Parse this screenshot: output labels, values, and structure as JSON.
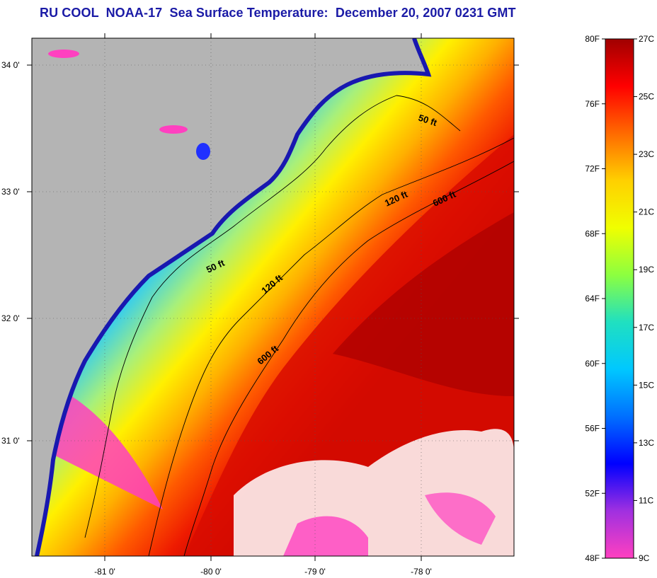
{
  "title": "RU COOL  NOAA-17  Sea Surface Temperature:  December 20, 2007 0231 GMT",
  "map": {
    "lat_labels": [
      "34 0'",
      "33 0'",
      "32 0'",
      "31 0'"
    ],
    "lon_labels": [
      "-81 0'",
      "-80 0'",
      "-79 0'",
      "-78 0'"
    ],
    "contour_labels": [
      "50 ft",
      "120 ft",
      "600 ft",
      "50 ft",
      "120 ft",
      "600 ft"
    ]
  },
  "colorbar": {
    "fahrenheit_labels": [
      "80F",
      "76F",
      "72F",
      "68F",
      "64F",
      "60F",
      "56F",
      "52F",
      "48F"
    ],
    "celsius_labels": [
      "27C",
      "25C",
      "23C",
      "21C",
      "19C",
      "17C",
      "15C",
      "13C",
      "11C",
      "9C"
    ],
    "colors": [
      "#a00000",
      "#ff0000",
      "#ff6a00",
      "#ffd000",
      "#f0ff00",
      "#8cff40",
      "#20e0c0",
      "#00c8ff",
      "#0070ff",
      "#0000ff",
      "#a030e0",
      "#ff40c0"
    ]
  },
  "colors": {
    "land": "#b4b4b4",
    "title": "#1a1aa6",
    "cloud": "#ffffff"
  }
}
